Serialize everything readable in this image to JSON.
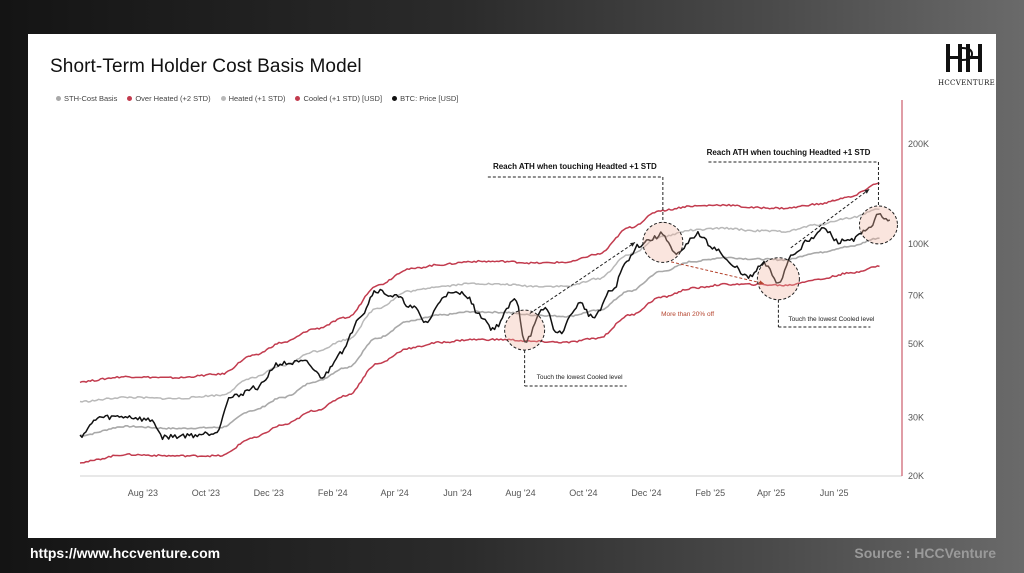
{
  "chart_data": {
    "type": "line",
    "title": "Short-Term Holder Cost Basis Model",
    "xlabel": "",
    "ylabel": "",
    "y_scale": "log",
    "ylim": [
      20000,
      260000
    ],
    "x_range": [
      "2023-06-01",
      "2025-07-31"
    ],
    "x_ticks": [
      {
        "label": "Aug '23",
        "date": "2023-08-01"
      },
      {
        "label": "Oct '23",
        "date": "2023-10-01"
      },
      {
        "label": "Dec '23",
        "date": "2023-12-01"
      },
      {
        "label": "Feb '24",
        "date": "2024-02-01"
      },
      {
        "label": "Apr '24",
        "date": "2024-04-01"
      },
      {
        "label": "Jun '24",
        "date": "2024-06-01"
      },
      {
        "label": "Aug '24",
        "date": "2024-08-01"
      },
      {
        "label": "Oct '24",
        "date": "2024-10-01"
      },
      {
        "label": "Dec '24",
        "date": "2024-12-01"
      },
      {
        "label": "Feb '25",
        "date": "2025-02-01"
      },
      {
        "label": "Apr '25",
        "date": "2025-04-01"
      },
      {
        "label": "Jun '25",
        "date": "2025-06-01"
      }
    ],
    "y_ticks": [
      {
        "label": "20K",
        "value": 20000
      },
      {
        "label": "30K",
        "value": 30000
      },
      {
        "label": "50K",
        "value": 50000
      },
      {
        "label": "70K",
        "value": 70000
      },
      {
        "label": "100K",
        "value": 100000
      },
      {
        "label": "200K",
        "value": 200000
      }
    ],
    "grid": false,
    "legend_placement": "top-left",
    "series": [
      {
        "name": "STH-Cost Basis",
        "color": "#a9a9a9",
        "points": [
          [
            "2023-06-01",
            26500
          ],
          [
            "2023-07-15",
            28200
          ],
          [
            "2023-09-01",
            27800
          ],
          [
            "2023-10-15",
            28000
          ],
          [
            "2023-11-15",
            31500
          ],
          [
            "2023-12-15",
            34500
          ],
          [
            "2024-01-15",
            38500
          ],
          [
            "2024-02-15",
            42500
          ],
          [
            "2024-03-15",
            52000
          ],
          [
            "2024-04-15",
            58500
          ],
          [
            "2024-05-15",
            61000
          ],
          [
            "2024-06-15",
            62500
          ],
          [
            "2024-07-15",
            62200
          ],
          [
            "2024-08-15",
            61000
          ],
          [
            "2024-09-15",
            60500
          ],
          [
            "2024-10-15",
            63000
          ],
          [
            "2024-11-15",
            72000
          ],
          [
            "2024-12-15",
            82500
          ],
          [
            "2025-01-15",
            88500
          ],
          [
            "2025-02-15",
            91000
          ],
          [
            "2025-03-15",
            90000
          ],
          [
            "2025-04-15",
            89500
          ],
          [
            "2025-05-15",
            94000
          ],
          [
            "2025-06-15",
            98000
          ],
          [
            "2025-07-15",
            104000
          ]
        ]
      },
      {
        "name": "Over Heated (+2 STD)",
        "color": "#c23b4e",
        "points": [
          [
            "2023-06-01",
            38500
          ],
          [
            "2023-07-15",
            39800
          ],
          [
            "2023-09-01",
            39500
          ],
          [
            "2023-10-15",
            40500
          ],
          [
            "2023-11-15",
            46000
          ],
          [
            "2023-12-15",
            50500
          ],
          [
            "2024-01-15",
            55500
          ],
          [
            "2024-02-15",
            60000
          ],
          [
            "2024-03-15",
            75000
          ],
          [
            "2024-04-15",
            84000
          ],
          [
            "2024-05-15",
            86500
          ],
          [
            "2024-06-15",
            88500
          ],
          [
            "2024-07-15",
            88500
          ],
          [
            "2024-08-15",
            87500
          ],
          [
            "2024-09-15",
            88000
          ],
          [
            "2024-10-15",
            93000
          ],
          [
            "2024-11-15",
            112000
          ],
          [
            "2024-12-15",
            126000
          ],
          [
            "2025-01-15",
            130000
          ],
          [
            "2025-02-15",
            131000
          ],
          [
            "2025-03-15",
            128500
          ],
          [
            "2025-04-15",
            128000
          ],
          [
            "2025-05-15",
            131500
          ],
          [
            "2025-06-15",
            138000
          ],
          [
            "2025-07-15",
            152000
          ]
        ]
      },
      {
        "name": "Heated (+1 STD)",
        "color": "#b9b9b9",
        "points": [
          [
            "2023-06-01",
            33500
          ],
          [
            "2023-07-15",
            34500
          ],
          [
            "2023-09-01",
            34200
          ],
          [
            "2023-10-15",
            35000
          ],
          [
            "2023-11-15",
            39500
          ],
          [
            "2023-12-15",
            43000
          ],
          [
            "2024-01-15",
            47500
          ],
          [
            "2024-02-15",
            51500
          ],
          [
            "2024-03-15",
            64000
          ],
          [
            "2024-04-15",
            72000
          ],
          [
            "2024-05-15",
            74500
          ],
          [
            "2024-06-15",
            76000
          ],
          [
            "2024-07-15",
            75500
          ],
          [
            "2024-08-15",
            74500
          ],
          [
            "2024-09-15",
            74500
          ],
          [
            "2024-10-15",
            78500
          ],
          [
            "2024-11-15",
            93000
          ],
          [
            "2024-12-15",
            105000
          ],
          [
            "2025-01-15",
            110000
          ],
          [
            "2025-02-15",
            111500
          ],
          [
            "2025-03-15",
            109500
          ],
          [
            "2025-04-15",
            109000
          ],
          [
            "2025-05-15",
            114000
          ],
          [
            "2025-06-15",
            119500
          ],
          [
            "2025-07-15",
            127000
          ]
        ]
      },
      {
        "name": "Cooled (+1 STD) [USD]",
        "color": "#c23b4e",
        "points": [
          [
            "2023-06-01",
            22000
          ],
          [
            "2023-07-15",
            23200
          ],
          [
            "2023-09-01",
            23000
          ],
          [
            "2023-10-15",
            23000
          ],
          [
            "2023-11-15",
            26000
          ],
          [
            "2023-12-15",
            28500
          ],
          [
            "2024-01-15",
            31500
          ],
          [
            "2024-02-15",
            35000
          ],
          [
            "2024-03-15",
            43500
          ],
          [
            "2024-04-15",
            48500
          ],
          [
            "2024-05-15",
            50500
          ],
          [
            "2024-06-15",
            51500
          ],
          [
            "2024-07-15",
            51500
          ],
          [
            "2024-08-15",
            50800
          ],
          [
            "2024-09-15",
            50500
          ],
          [
            "2024-10-15",
            52000
          ],
          [
            "2024-11-15",
            61000
          ],
          [
            "2024-12-15",
            69000
          ],
          [
            "2025-01-15",
            73500
          ],
          [
            "2025-02-15",
            75500
          ],
          [
            "2025-03-15",
            75500
          ],
          [
            "2025-04-15",
            75000
          ],
          [
            "2025-05-15",
            78000
          ],
          [
            "2025-06-15",
            81500
          ],
          [
            "2025-07-15",
            85500
          ]
        ]
      },
      {
        "name": "BTC: Price [USD]",
        "color": "#111111",
        "points": [
          [
            "2023-06-01",
            26500
          ],
          [
            "2023-06-20",
            30000
          ],
          [
            "2023-07-15",
            30200
          ],
          [
            "2023-08-10",
            29400
          ],
          [
            "2023-08-20",
            26200
          ],
          [
            "2023-09-15",
            26500
          ],
          [
            "2023-10-10",
            27000
          ],
          [
            "2023-10-25",
            34500
          ],
          [
            "2023-11-20",
            37000
          ],
          [
            "2023-12-10",
            43500
          ],
          [
            "2024-01-05",
            44000
          ],
          [
            "2024-01-22",
            39800
          ],
          [
            "2024-02-10",
            47500
          ],
          [
            "2024-02-28",
            61000
          ],
          [
            "2024-03-14",
            72500
          ],
          [
            "2024-04-01",
            69500
          ],
          [
            "2024-04-20",
            64000
          ],
          [
            "2024-05-01",
            58000
          ],
          [
            "2024-05-21",
            70500
          ],
          [
            "2024-06-07",
            71000
          ],
          [
            "2024-06-24",
            60500
          ],
          [
            "2024-07-05",
            55500
          ],
          [
            "2024-07-28",
            68000
          ],
          [
            "2024-08-05",
            51000
          ],
          [
            "2024-08-25",
            64000
          ],
          [
            "2024-09-06",
            53500
          ],
          [
            "2024-09-28",
            66000
          ],
          [
            "2024-10-10",
            60000
          ],
          [
            "2024-10-29",
            72500
          ],
          [
            "2024-11-12",
            88000
          ],
          [
            "2024-11-22",
            98500
          ],
          [
            "2024-12-05",
            103000
          ],
          [
            "2024-12-17",
            107000
          ],
          [
            "2024-12-30",
            92500
          ],
          [
            "2025-01-20",
            107000
          ],
          [
            "2025-02-03",
            98000
          ],
          [
            "2025-02-25",
            85000
          ],
          [
            "2025-03-10",
            79000
          ],
          [
            "2025-03-25",
            87000
          ],
          [
            "2025-04-08",
            76500
          ],
          [
            "2025-04-22",
            93500
          ],
          [
            "2025-05-10",
            104000
          ],
          [
            "2025-05-22",
            111000
          ],
          [
            "2025-06-05",
            101500
          ],
          [
            "2025-06-20",
            103500
          ],
          [
            "2025-07-03",
            109500
          ],
          [
            "2025-07-14",
            122000
          ],
          [
            "2025-07-25",
            118000
          ]
        ]
      }
    ],
    "annotations": [
      {
        "text": "Reach ATH when touching Headted +1 STD",
        "style": "bold"
      },
      {
        "text": "Reach ATH when touching Headted +1 STD",
        "style": "bold"
      },
      {
        "text": "Touch the lowest Cooled level",
        "style": "small"
      },
      {
        "text": "Touch the lowest Cooled level",
        "style": "small"
      },
      {
        "text": "More than 20% off",
        "style": "red"
      }
    ]
  },
  "logo": {
    "text": "HCCVENTURE"
  },
  "footer": {
    "url": "https://www.hccventure.com",
    "source": "Source : HCCVenture"
  }
}
